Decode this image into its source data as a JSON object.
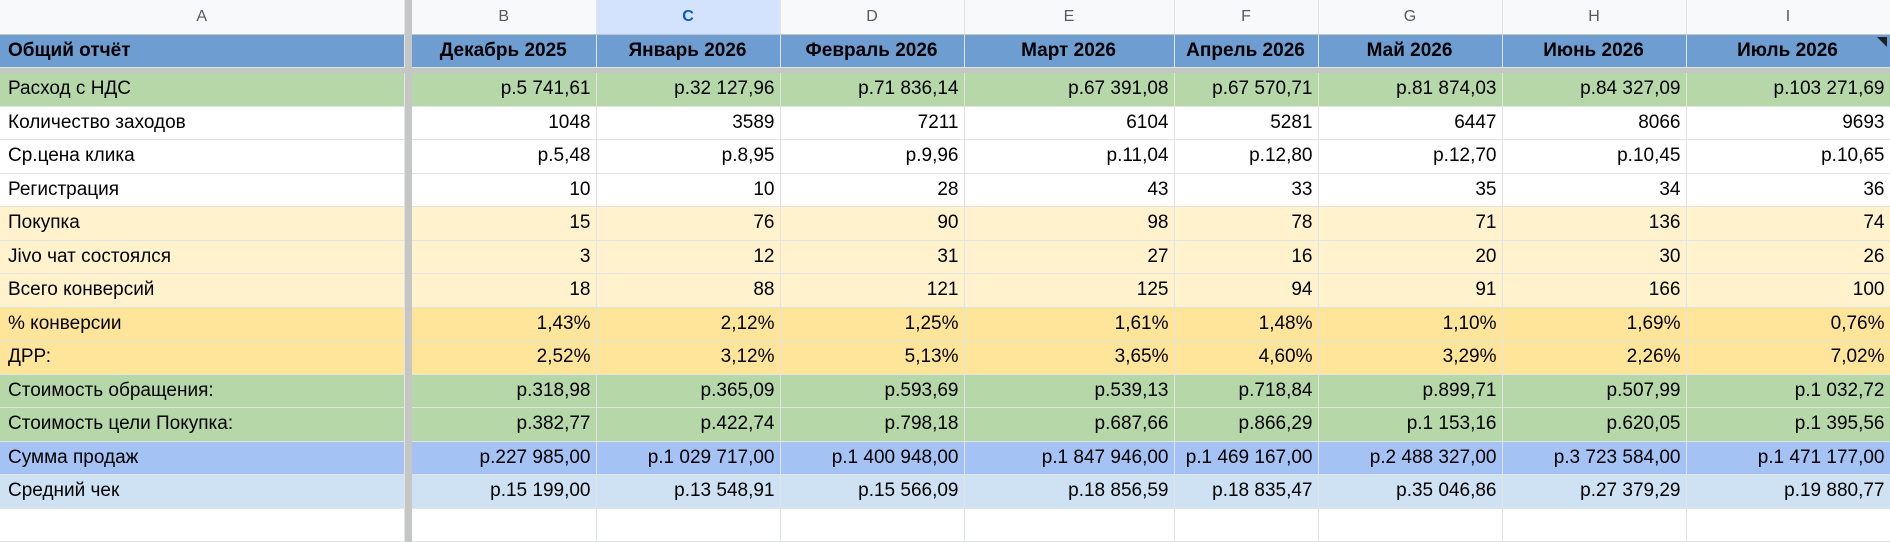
{
  "columns": [
    "A",
    "B",
    "C",
    "D",
    "E",
    "F",
    "G",
    "H",
    "I"
  ],
  "header": {
    "title": "Общий отчёт",
    "months": [
      "Декабрь 2025",
      "Январь 2026",
      "Февраль 2026",
      "Март 2026",
      "Апрель 2026",
      "Май 2026",
      "Июнь 2026",
      "Июль 2026"
    ]
  },
  "rows": [
    {
      "label": "Расход с НДС",
      "values": [
        "р.5 741,61",
        "р.32 127,96",
        "р.71 836,14",
        "р.67 391,08",
        "р.67 570,71",
        "р.81 874,03",
        "р.84 327,09",
        "р.103 271,69"
      ]
    },
    {
      "label": "Количество заходов",
      "values": [
        "1048",
        "3589",
        "7211",
        "6104",
        "5281",
        "6447",
        "8066",
        "9693"
      ]
    },
    {
      "label": "Ср.цена клика",
      "values": [
        "р.5,48",
        "р.8,95",
        "р.9,96",
        "р.11,04",
        "р.12,80",
        "р.12,70",
        "р.10,45",
        "р.10,65"
      ]
    },
    {
      "label": "Регистрация",
      "values": [
        "10",
        "10",
        "28",
        "43",
        "33",
        "35",
        "34",
        "36"
      ]
    },
    {
      "label": "Покупка",
      "values": [
        "15",
        "76",
        "90",
        "98",
        "78",
        "71",
        "136",
        "74"
      ]
    },
    {
      "label": "Jivo чат состоялся",
      "values": [
        "3",
        "12",
        "31",
        "27",
        "16",
        "20",
        "30",
        "26"
      ]
    },
    {
      "label": "Всего конверсий",
      "values": [
        "18",
        "88",
        "121",
        "125",
        "94",
        "91",
        "166",
        "100"
      ]
    },
    {
      "label": "% конверсии",
      "values": [
        "1,43%",
        "2,12%",
        "1,25%",
        "1,61%",
        "1,48%",
        "1,10%",
        "1,69%",
        "0,76%"
      ]
    },
    {
      "label": "ДРР:",
      "values": [
        "2,52%",
        "3,12%",
        "5,13%",
        "3,65%",
        "4,60%",
        "3,29%",
        "2,26%",
        "7,02%"
      ]
    },
    {
      "label": "Стоимость обращения:",
      "values": [
        "р.318,98",
        "р.365,09",
        "р.593,69",
        "р.539,13",
        "р.718,84",
        "р.899,71",
        "р.507,99",
        "р.1 032,72"
      ]
    },
    {
      "label": "Стоимость цели Покупка:",
      "values": [
        "р.382,77",
        "р.422,74",
        "р.798,18",
        "р.687,66",
        "р.866,29",
        "р.1 153,16",
        "р.620,05",
        "р.1 395,56"
      ]
    },
    {
      "label": "Сумма продаж",
      "values": [
        "р.227 985,00",
        "р.1 029 717,00",
        "р.1 400 948,00",
        "р.1 847 946,00",
        "р.1 469 167,00",
        "р.2 488 327,00",
        "р.3 723 584,00",
        "р.1 471 177,00"
      ]
    },
    {
      "label": "Средний чек",
      "values": [
        "р.15 199,00",
        "р.13 548,91",
        "р.15 566,09",
        "р.18 856,59",
        "р.18 835,47",
        "р.35 046,86",
        "р.27 379,29",
        "р.19 880,77"
      ]
    }
  ],
  "colors": {
    "header": "#6d9dd1",
    "green": "#b6d7a8",
    "light_yellow": "#fff2cc",
    "yellow": "#ffe599",
    "blue": "#a4c2f4",
    "light_blue": "#cfe2f3",
    "selected_column": "#d3e3fd"
  },
  "selected_column": "C"
}
